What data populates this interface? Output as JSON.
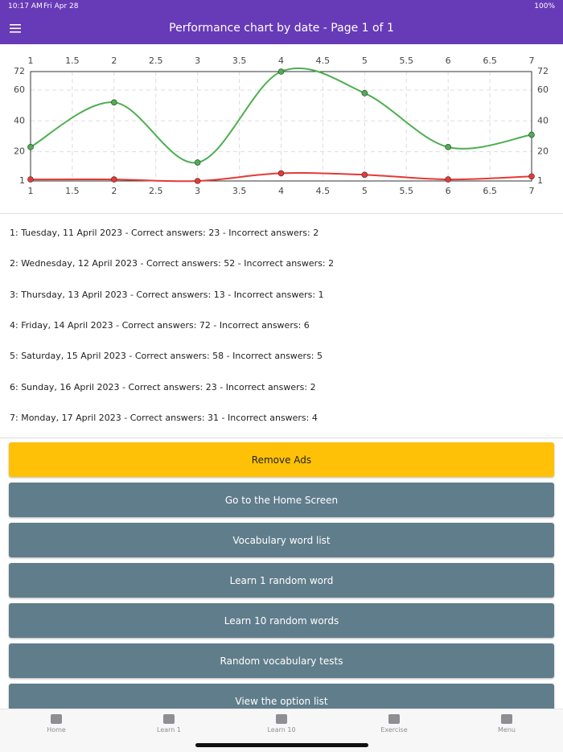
{
  "status_bar": {
    "time": "10:17 AM",
    "date": "Fri Apr 28",
    "battery": "100%"
  },
  "header": {
    "title": "Performance chart by date - Page 1 of 1"
  },
  "chart_data": {
    "type": "line",
    "smooth": true,
    "x": [
      1,
      2,
      3,
      4,
      5,
      6,
      7
    ],
    "series": [
      {
        "color": "#4caf50",
        "values": [
          23,
          52,
          13,
          72,
          58,
          23,
          31
        ]
      },
      {
        "color": "#e53935",
        "values": [
          2,
          2,
          1,
          6,
          5,
          2,
          4
        ]
      }
    ],
    "xlim": [
      1,
      7
    ],
    "xticks": [
      1,
      1.5,
      2,
      2.5,
      3,
      3.5,
      4,
      4.5,
      5,
      5.5,
      6,
      6.5,
      7
    ],
    "ylim": [
      1,
      72
    ],
    "yticks": [
      1,
      20,
      40,
      60,
      72
    ],
    "grid": true
  },
  "entries": [
    "1: Tuesday, 11 April 2023 - Correct answers: 23 - Incorrect answers: 2",
    "2: Wednesday, 12 April 2023 - Correct answers: 52 - Incorrect answers: 2",
    "3: Thursday, 13 April 2023 - Correct answers: 13 - Incorrect answers: 1",
    "4: Friday, 14 April 2023 - Correct answers: 72 - Incorrect answers: 6",
    "5: Saturday, 15 April 2023 - Correct answers: 58 - Incorrect answers: 5",
    "6: Sunday, 16 April 2023 - Correct answers: 23 - Incorrect answers: 2",
    "7: Monday, 17 April 2023 - Correct answers: 31 - Incorrect answers: 4"
  ],
  "buttons": [
    "Remove Ads",
    "Go to the Home Screen",
    "Vocabulary word list",
    "Learn 1 random word",
    "Learn 10 random words",
    "Random vocabulary tests",
    "View the option list"
  ],
  "tabs": [
    "Home",
    "Learn 1",
    "Learn 10",
    "Exercise",
    "Menu"
  ]
}
